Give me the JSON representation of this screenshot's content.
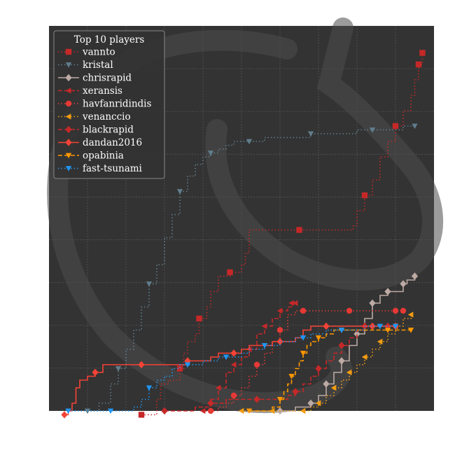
{
  "chart_data": {
    "type": "line",
    "title": "",
    "xlabel": "",
    "ylabel": "",
    "xlim": [
      0,
      100
    ],
    "ylim": [
      0,
      100
    ],
    "grid": true,
    "background": "#333333",
    "gridline_color": "#555555",
    "watermark": "stylized-knight-chess-piece",
    "legend": {
      "title": "Top 10 players",
      "position": "top-left"
    },
    "series": [
      {
        "name": "vannto",
        "color": "#c62828",
        "line_style": "dotted",
        "marker": "square",
        "points": [
          [
            24,
            -1
          ],
          [
            28,
            3
          ],
          [
            29,
            7
          ],
          [
            31,
            8
          ],
          [
            34,
            11
          ],
          [
            35,
            15
          ],
          [
            36,
            18
          ],
          [
            38,
            20
          ],
          [
            39,
            24
          ],
          [
            41,
            27
          ],
          [
            42,
            31
          ],
          [
            44,
            35
          ],
          [
            47,
            36
          ],
          [
            50,
            38
          ],
          [
            51,
            41
          ],
          [
            52,
            47
          ],
          [
            65,
            47
          ],
          [
            75,
            47
          ],
          [
            79,
            48
          ],
          [
            80,
            52
          ],
          [
            82,
            56
          ],
          [
            84,
            60
          ],
          [
            86,
            66
          ],
          [
            88,
            70
          ],
          [
            90,
            74
          ],
          [
            92,
            78
          ],
          [
            94,
            82
          ],
          [
            95,
            86
          ],
          [
            96,
            90
          ],
          [
            97,
            93
          ]
        ]
      },
      {
        "name": "kristal",
        "color": "#607d8b",
        "line_style": "dotted",
        "marker": "triangle-down",
        "points": [
          [
            10,
            0
          ],
          [
            11,
            0
          ],
          [
            13,
            2
          ],
          [
            16,
            7
          ],
          [
            18,
            11
          ],
          [
            20,
            16
          ],
          [
            22,
            21
          ],
          [
            24,
            27
          ],
          [
            26,
            33
          ],
          [
            28,
            38
          ],
          [
            30,
            45
          ],
          [
            32,
            51
          ],
          [
            34,
            57
          ],
          [
            36,
            61
          ],
          [
            38,
            64
          ],
          [
            40,
            66
          ],
          [
            42,
            67
          ],
          [
            44,
            68
          ],
          [
            46,
            69
          ],
          [
            48,
            70
          ],
          [
            52,
            70
          ],
          [
            56,
            71
          ],
          [
            60,
            71
          ],
          [
            64,
            71
          ],
          [
            68,
            72
          ],
          [
            72,
            72
          ],
          [
            76,
            72
          ],
          [
            80,
            73
          ],
          [
            84,
            73
          ],
          [
            88,
            73
          ],
          [
            92,
            74
          ],
          [
            95,
            74
          ]
        ]
      },
      {
        "name": "chrisrapid",
        "color": "#bcaaa4",
        "line_style": "solid",
        "marker": "diamond",
        "points": [
          [
            60,
            0
          ],
          [
            64,
            1
          ],
          [
            68,
            2
          ],
          [
            70,
            4
          ],
          [
            72,
            7
          ],
          [
            74,
            10
          ],
          [
            76,
            13
          ],
          [
            78,
            17
          ],
          [
            80,
            20
          ],
          [
            82,
            24
          ],
          [
            84,
            28
          ],
          [
            86,
            30
          ],
          [
            88,
            31
          ],
          [
            90,
            31
          ],
          [
            92,
            33
          ],
          [
            93,
            34
          ],
          [
            95,
            35
          ]
        ]
      },
      {
        "name": "xeransis",
        "color": "#c62828",
        "line_style": "dashed",
        "marker": "triangle-left",
        "points": [
          [
            40,
            0
          ],
          [
            42,
            3
          ],
          [
            44,
            6
          ],
          [
            46,
            10
          ],
          [
            48,
            12
          ],
          [
            50,
            14
          ],
          [
            52,
            16
          ],
          [
            54,
            20
          ],
          [
            56,
            22
          ],
          [
            58,
            24
          ],
          [
            60,
            26
          ],
          [
            62,
            27
          ],
          [
            63,
            28
          ],
          [
            64,
            28
          ]
        ]
      },
      {
        "name": "havfanridindis",
        "color": "#e53935",
        "line_style": "dotted",
        "marker": "circle",
        "points": [
          [
            42,
            0
          ],
          [
            44,
            1
          ],
          [
            46,
            2
          ],
          [
            48,
            4
          ],
          [
            50,
            6
          ],
          [
            52,
            9
          ],
          [
            54,
            12
          ],
          [
            56,
            15
          ],
          [
            58,
            18
          ],
          [
            60,
            21
          ],
          [
            62,
            25
          ],
          [
            64,
            26
          ],
          [
            66,
            26
          ],
          [
            70,
            26
          ],
          [
            74,
            26
          ],
          [
            78,
            26
          ],
          [
            82,
            26
          ],
          [
            86,
            26
          ],
          [
            90,
            26
          ],
          [
            92,
            26
          ]
        ]
      },
      {
        "name": "venanccio",
        "color": "#f39c12",
        "line_style": "dotted",
        "marker": "triangle-left",
        "points": [
          [
            50,
            0
          ],
          [
            54,
            0
          ],
          [
            58,
            0
          ],
          [
            62,
            0
          ],
          [
            66,
            0
          ],
          [
            68,
            1
          ],
          [
            70,
            2
          ],
          [
            72,
            4
          ],
          [
            74,
            6
          ],
          [
            76,
            8
          ],
          [
            78,
            10
          ],
          [
            80,
            12
          ],
          [
            82,
            14
          ],
          [
            84,
            16
          ],
          [
            86,
            18
          ],
          [
            88,
            20
          ],
          [
            90,
            22
          ],
          [
            92,
            24
          ],
          [
            94,
            25
          ]
        ]
      },
      {
        "name": "blackrapid",
        "color": "#c62828",
        "line_style": "dashed",
        "marker": "diamond",
        "points": [
          [
            30,
            0
          ],
          [
            34,
            0
          ],
          [
            38,
            1
          ],
          [
            42,
            2
          ],
          [
            46,
            3
          ],
          [
            50,
            3
          ],
          [
            54,
            3
          ],
          [
            58,
            3
          ],
          [
            62,
            4
          ],
          [
            64,
            5
          ],
          [
            66,
            7
          ],
          [
            68,
            9
          ],
          [
            70,
            11
          ],
          [
            72,
            13
          ],
          [
            74,
            15
          ],
          [
            76,
            17
          ],
          [
            78,
            19
          ],
          [
            80,
            21
          ],
          [
            82,
            22
          ],
          [
            84,
            22
          ],
          [
            86,
            22
          ],
          [
            88,
            22
          ],
          [
            90,
            22
          ]
        ]
      },
      {
        "name": "dandan2016",
        "color": "#f44336",
        "line_style": "solid",
        "marker": "diamond",
        "points": [
          [
            4,
            -1
          ],
          [
            5,
            0
          ],
          [
            6,
            2
          ],
          [
            7,
            6
          ],
          [
            8,
            8
          ],
          [
            10,
            9
          ],
          [
            12,
            10
          ],
          [
            14,
            12
          ],
          [
            16,
            12
          ],
          [
            18,
            12
          ],
          [
            20,
            12
          ],
          [
            22,
            12
          ],
          [
            24,
            12
          ],
          [
            26,
            12
          ],
          [
            28,
            12
          ],
          [
            30,
            12
          ],
          [
            32,
            12
          ],
          [
            34,
            12
          ],
          [
            36,
            13
          ],
          [
            38,
            13
          ],
          [
            40,
            13
          ],
          [
            42,
            14
          ],
          [
            44,
            15
          ],
          [
            46,
            15
          ],
          [
            48,
            15
          ],
          [
            50,
            16
          ],
          [
            52,
            17
          ],
          [
            54,
            17
          ],
          [
            56,
            17
          ],
          [
            58,
            18
          ],
          [
            60,
            18
          ],
          [
            62,
            18
          ],
          [
            64,
            19
          ],
          [
            66,
            21
          ],
          [
            68,
            22
          ],
          [
            70,
            22
          ],
          [
            72,
            22
          ],
          [
            74,
            22
          ],
          [
            76,
            22
          ],
          [
            78,
            22
          ],
          [
            80,
            22
          ],
          [
            82,
            22
          ],
          [
            84,
            22
          ],
          [
            86,
            22
          ],
          [
            88,
            22
          ],
          [
            90,
            22
          ]
        ]
      },
      {
        "name": "opabinia",
        "color": "#ff9800",
        "line_style": "dashed",
        "marker": "triangle-down",
        "points": [
          [
            52,
            0
          ],
          [
            55,
            0
          ],
          [
            58,
            1
          ],
          [
            60,
            3
          ],
          [
            61,
            5
          ],
          [
            62,
            7
          ],
          [
            63,
            9
          ],
          [
            64,
            11
          ],
          [
            65,
            13
          ],
          [
            66,
            15
          ],
          [
            67,
            17
          ],
          [
            68,
            18
          ],
          [
            70,
            19
          ],
          [
            72,
            20
          ],
          [
            74,
            21
          ],
          [
            76,
            21
          ],
          [
            80,
            21
          ],
          [
            84,
            21
          ],
          [
            88,
            21
          ],
          [
            92,
            21
          ],
          [
            94,
            21
          ]
        ]
      },
      {
        "name": "fast-tsunami",
        "color": "#2196f3",
        "line_style": "dotted",
        "marker": "triangle-down",
        "points": [
          [
            5,
            0
          ],
          [
            8,
            0
          ],
          [
            10,
            0
          ],
          [
            12,
            0
          ],
          [
            14,
            0
          ],
          [
            16,
            0
          ],
          [
            18,
            0
          ],
          [
            20,
            0
          ],
          [
            22,
            1
          ],
          [
            24,
            3
          ],
          [
            26,
            6
          ],
          [
            28,
            8
          ],
          [
            30,
            9
          ],
          [
            32,
            11
          ],
          [
            34,
            12
          ],
          [
            36,
            12
          ],
          [
            38,
            12
          ],
          [
            40,
            13
          ],
          [
            42,
            13
          ],
          [
            44,
            14
          ],
          [
            46,
            14
          ],
          [
            48,
            14
          ],
          [
            50,
            15
          ],
          [
            52,
            16
          ],
          [
            54,
            16
          ],
          [
            56,
            17
          ],
          [
            58,
            17
          ],
          [
            60,
            18
          ],
          [
            62,
            18
          ],
          [
            64,
            19
          ],
          [
            66,
            19
          ],
          [
            68,
            20
          ],
          [
            70,
            20
          ],
          [
            72,
            21
          ],
          [
            74,
            21
          ],
          [
            76,
            21
          ],
          [
            78,
            21
          ],
          [
            80,
            21
          ],
          [
            82,
            22
          ],
          [
            84,
            22
          ],
          [
            86,
            22
          ],
          [
            88,
            22
          ],
          [
            90,
            22
          ]
        ]
      }
    ]
  }
}
